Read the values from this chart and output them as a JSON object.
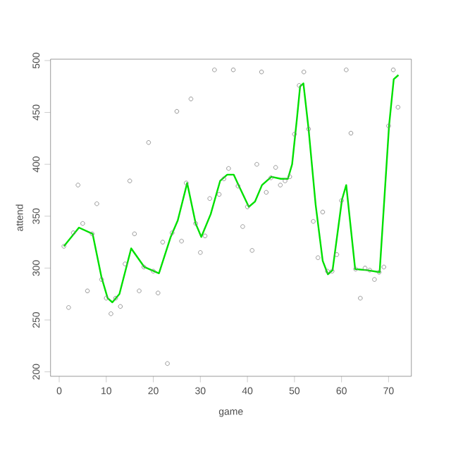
{
  "chart_data": {
    "type": "scatter",
    "xlabel": "game",
    "ylabel": "attend",
    "xlim": [
      -1.84,
      74.84
    ],
    "ylim": [
      195.7,
      501.3
    ],
    "xticks": [
      0,
      10,
      20,
      30,
      40,
      50,
      60,
      70
    ],
    "yticks": [
      200,
      250,
      300,
      350,
      400,
      450,
      500
    ],
    "series": [
      {
        "marker": "circle",
        "color": "#808080",
        "x": [
          1,
          2,
          3,
          4,
          5,
          6,
          7,
          8,
          9,
          10,
          11,
          12,
          13,
          14,
          15,
          16,
          17,
          18,
          19,
          20,
          21,
          22,
          23,
          24,
          25,
          26,
          27,
          28,
          29,
          30,
          31,
          32,
          33,
          34,
          35,
          36,
          37,
          38,
          39,
          40,
          41,
          42,
          43,
          44,
          45,
          46,
          47,
          48,
          49,
          50,
          51,
          52,
          53,
          54,
          55,
          56,
          57,
          58,
          59,
          60,
          61,
          62,
          63,
          64,
          65,
          66,
          67,
          68,
          69,
          70,
          71,
          72
        ],
        "values": [
          321,
          262,
          334,
          380,
          343,
          278,
          333,
          362,
          289,
          271,
          256,
          271,
          263,
          304,
          384,
          333,
          278,
          301,
          421,
          297,
          276,
          325,
          208,
          334,
          451,
          326,
          382,
          463,
          343,
          315,
          331,
          367,
          491,
          371,
          386,
          396,
          491,
          379,
          340,
          359,
          317,
          400,
          489,
          373,
          387,
          397,
          380,
          384,
          388,
          429,
          476,
          489,
          434,
          345,
          310,
          354,
          297,
          297,
          313,
          365,
          491,
          430,
          299,
          271,
          300,
          298,
          289,
          296,
          301,
          437,
          491,
          455
        ]
      },
      {
        "type": "line",
        "marker": "none",
        "line_style": "solid",
        "color": "#00e000",
        "x": [
          1,
          4.2,
          7.1,
          9,
          10.3,
          11.3,
          12.8,
          15.3,
          18.1,
          21.2,
          23.7,
          25.2,
          27.2,
          29,
          30.2,
          32.2,
          34.2,
          35.7,
          37.1,
          38.1,
          40.3,
          41.6,
          43.1,
          45.1,
          47.1,
          48.6,
          49.5,
          50.5,
          51.2,
          51.9,
          53,
          54.5,
          56,
          57.1,
          58.1,
          60.1,
          61,
          62.9,
          65.4,
          68.1,
          70.1,
          71.1,
          72.1
        ],
        "values": [
          321,
          339,
          333,
          291,
          271,
          267,
          275,
          319,
          301,
          295,
          330,
          346,
          382,
          343,
          330,
          352,
          384,
          390,
          390,
          380,
          359,
          364,
          380,
          388,
          386,
          386,
          400,
          443,
          475,
          478,
          434,
          361,
          307,
          294,
          298,
          366,
          380,
          299,
          298,
          296,
          437,
          482,
          486
        ]
      }
    ]
  }
}
